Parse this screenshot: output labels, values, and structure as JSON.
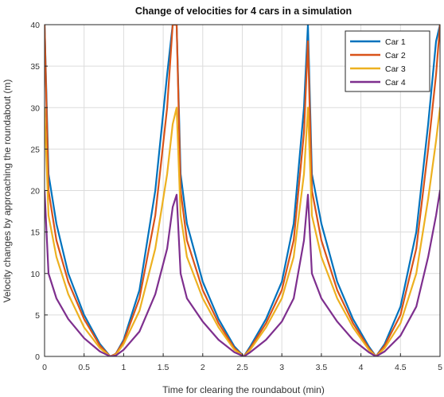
{
  "chart_data": {
    "type": "line",
    "title": "Change of velocities for 4 cars in a simulation",
    "xlabel": "Time for clearing the roundabout (min)",
    "ylabel": "Velocity changes by approaching the roundabout (m)",
    "xlim": [
      0,
      5
    ],
    "ylim": [
      0,
      40
    ],
    "xticks": [
      0,
      0.5,
      1,
      1.5,
      2,
      2.5,
      3,
      3.5,
      4,
      4.5,
      5
    ],
    "xtick_labels": [
      "0",
      "0.5",
      "1",
      "1.5",
      "2",
      "2.5",
      "3",
      "3.5",
      "4",
      "4.5",
      "5"
    ],
    "yticks": [
      0,
      5,
      10,
      15,
      20,
      25,
      30,
      35,
      40
    ],
    "ytick_labels": [
      "0",
      "5",
      "10",
      "15",
      "20",
      "25",
      "30",
      "35",
      "40"
    ],
    "grid": true,
    "legend_position": "top-right",
    "series": [
      {
        "name": "Car 1",
        "color": "#0072BD",
        "x": [
          0,
          0.05,
          0.15,
          0.3,
          0.5,
          0.7,
          0.83,
          0.9,
          1.0,
          1.2,
          1.4,
          1.55,
          1.62,
          1.67,
          1.72,
          1.8,
          2.0,
          2.2,
          2.4,
          2.52,
          2.6,
          2.8,
          3.0,
          3.15,
          3.28,
          3.33,
          3.38,
          3.5,
          3.7,
          3.9,
          4.1,
          4.19,
          4.3,
          4.5,
          4.7,
          4.85,
          4.95,
          5.0
        ],
        "y": [
          40,
          22,
          16,
          10,
          5,
          1.5,
          0,
          0.3,
          2,
          8,
          20,
          34,
          40,
          40,
          22,
          16,
          9,
          4.5,
          1.2,
          0,
          1.2,
          4.5,
          9,
          16,
          30,
          40,
          22,
          16,
          9,
          4.5,
          1.2,
          0,
          1.5,
          6,
          15,
          28,
          38,
          40
        ]
      },
      {
        "name": "Car 2",
        "color": "#D95319",
        "x": [
          0,
          0.05,
          0.15,
          0.3,
          0.5,
          0.7,
          0.83,
          0.9,
          1.0,
          1.2,
          1.4,
          1.55,
          1.62,
          1.67,
          1.72,
          1.8,
          2.0,
          2.2,
          2.4,
          2.52,
          2.6,
          2.8,
          3.0,
          3.15,
          3.28,
          3.33,
          3.38,
          3.5,
          3.7,
          3.9,
          4.1,
          4.19,
          4.3,
          4.5,
          4.7,
          4.85,
          4.95,
          5.0
        ],
        "y": [
          40,
          20,
          14,
          9,
          4.5,
          1.3,
          0,
          0.3,
          1.8,
          7,
          17,
          30,
          40,
          40,
          20,
          14,
          8,
          4,
          1,
          0,
          1,
          4,
          8,
          14,
          27,
          38,
          20,
          14,
          8,
          4,
          1,
          0,
          1.3,
          5,
          13,
          25,
          34,
          40
        ]
      },
      {
        "name": "Car 3",
        "color": "#EDB120",
        "x": [
          0,
          0.05,
          0.15,
          0.3,
          0.5,
          0.7,
          0.83,
          0.9,
          1.0,
          1.2,
          1.4,
          1.55,
          1.62,
          1.67,
          1.72,
          1.8,
          2.0,
          2.2,
          2.4,
          2.52,
          2.6,
          2.8,
          3.0,
          3.15,
          3.28,
          3.33,
          3.38,
          3.5,
          3.7,
          3.9,
          4.1,
          4.19,
          4.3,
          4.5,
          4.7,
          4.85,
          4.95,
          5.0
        ],
        "y": [
          30,
          17,
          12,
          7.5,
          3.5,
          1,
          0,
          0.2,
          1.5,
          5.5,
          13,
          22,
          28,
          30,
          17,
          12,
          7,
          3.5,
          0.8,
          0,
          0.8,
          3.5,
          7,
          12,
          22,
          30,
          17,
          12,
          7,
          3.5,
          0.8,
          0,
          1,
          4,
          10,
          19,
          26,
          30
        ]
      },
      {
        "name": "Car 4",
        "color": "#7E2F8E",
        "x": [
          0,
          0.05,
          0.15,
          0.3,
          0.5,
          0.7,
          0.83,
          0.9,
          1.0,
          1.2,
          1.4,
          1.55,
          1.62,
          1.67,
          1.72,
          1.8,
          2.0,
          2.2,
          2.4,
          2.52,
          2.6,
          2.8,
          3.0,
          3.15,
          3.28,
          3.33,
          3.38,
          3.5,
          3.7,
          3.9,
          4.1,
          4.19,
          4.3,
          4.5,
          4.7,
          4.85,
          4.95,
          5.0
        ],
        "y": [
          20,
          10,
          7,
          4.5,
          2.2,
          0.6,
          0,
          0.1,
          0.8,
          3,
          7.5,
          13,
          18,
          19.5,
          10,
          7,
          4.2,
          2,
          0.5,
          0,
          0.5,
          2,
          4.2,
          7,
          14,
          19.5,
          10,
          7,
          4.2,
          2,
          0.5,
          0,
          0.6,
          2.5,
          6,
          12,
          17,
          20
        ]
      }
    ]
  }
}
